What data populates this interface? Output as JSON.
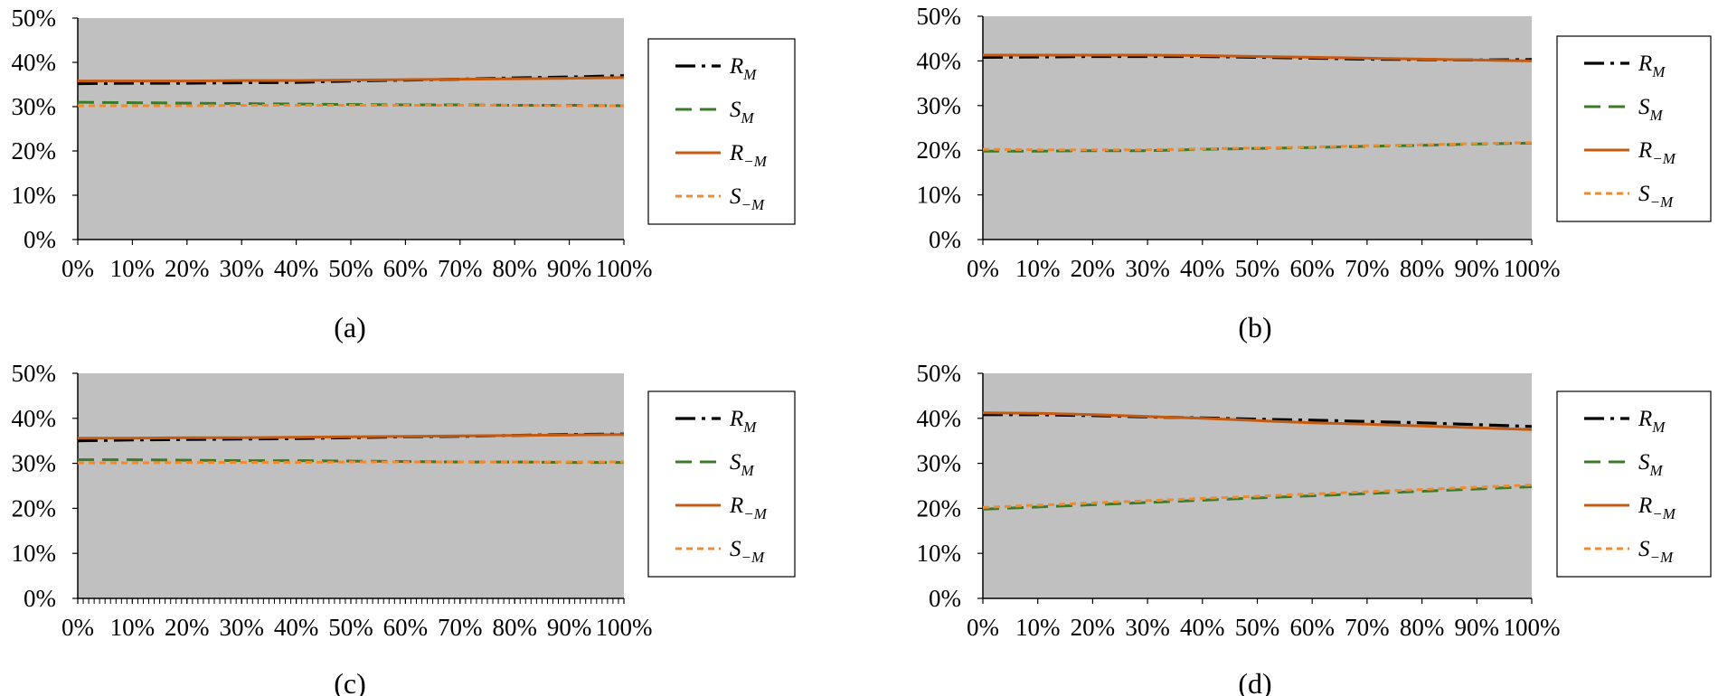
{
  "figure_title": "",
  "colors": {
    "plot_background": "#c0c0c0",
    "R_M": "#000000",
    "S_M": "#3a7a2a",
    "R_negM": "#c55a11",
    "S_negM": "#f08a30"
  },
  "chart_data": [
    {
      "type": "line",
      "caption": "(a)",
      "title": "",
      "xlabel": "",
      "ylabel": "",
      "x": [
        0,
        10,
        20,
        30,
        40,
        50,
        60,
        70,
        80,
        90,
        100
      ],
      "x_tick_labels": [
        "0%",
        "10%",
        "20%",
        "30%",
        "40%",
        "50%",
        "60%",
        "70%",
        "80%",
        "90%",
        "100%"
      ],
      "y_tick_labels": [
        "0%",
        "10%",
        "20%",
        "30%",
        "40%",
        "50%"
      ],
      "ylim": [
        0,
        50
      ],
      "minor_x_ticks": false,
      "legend_position": "right",
      "series": [
        {
          "name": "R_M",
          "label_main": "R",
          "label_sub": "M",
          "values": [
            35.2,
            35.3,
            35.3,
            35.4,
            35.5,
            35.8,
            36.0,
            36.2,
            36.5,
            36.7,
            37.0
          ]
        },
        {
          "name": "S_M",
          "label_main": "S",
          "label_sub": "M",
          "values": [
            31.0,
            30.9,
            30.8,
            30.7,
            30.6,
            30.5,
            30.4,
            30.4,
            30.3,
            30.3,
            30.2
          ]
        },
        {
          "name": "R_-M",
          "label_main": "R",
          "label_sub": "−M",
          "values": [
            35.8,
            35.8,
            35.8,
            35.9,
            35.9,
            36.0,
            36.1,
            36.2,
            36.3,
            36.4,
            36.6
          ]
        },
        {
          "name": "S_-M",
          "label_main": "S",
          "label_sub": "−M",
          "values": [
            30.2,
            30.2,
            30.2,
            30.3,
            30.3,
            30.3,
            30.3,
            30.3,
            30.3,
            30.2,
            30.2
          ]
        }
      ]
    },
    {
      "type": "line",
      "caption": "(b)",
      "title": "",
      "xlabel": "",
      "ylabel": "",
      "x": [
        0,
        10,
        20,
        30,
        40,
        50,
        60,
        70,
        80,
        90,
        100
      ],
      "x_tick_labels": [
        "0%",
        "10%",
        "20%",
        "30%",
        "40%",
        "50%",
        "60%",
        "70%",
        "80%",
        "90%",
        "100%"
      ],
      "y_tick_labels": [
        "0%",
        "10%",
        "20%",
        "30%",
        "40%",
        "50%"
      ],
      "ylim": [
        0,
        50
      ],
      "minor_x_ticks": false,
      "legend_position": "right",
      "series": [
        {
          "name": "R_M",
          "label_main": "R",
          "label_sub": "M",
          "values": [
            40.8,
            40.9,
            41.0,
            41.0,
            41.0,
            40.8,
            40.6,
            40.4,
            40.3,
            40.2,
            40.3
          ]
        },
        {
          "name": "S_M",
          "label_main": "S",
          "label_sub": "M",
          "values": [
            19.8,
            19.8,
            19.9,
            19.9,
            20.2,
            20.4,
            20.6,
            20.9,
            21.1,
            21.4,
            21.6
          ]
        },
        {
          "name": "R_-M",
          "label_main": "R",
          "label_sub": "−M",
          "values": [
            41.3,
            41.3,
            41.3,
            41.3,
            41.2,
            41.0,
            40.8,
            40.6,
            40.4,
            40.2,
            40.0
          ]
        },
        {
          "name": "S_-M",
          "label_main": "S",
          "label_sub": "−M",
          "values": [
            20.2,
            20.1,
            20.1,
            20.1,
            20.3,
            20.5,
            20.7,
            21.0,
            21.2,
            21.5,
            21.7
          ]
        }
      ]
    },
    {
      "type": "line",
      "caption": "(c)",
      "title": "",
      "xlabel": "",
      "ylabel": "",
      "x": [
        0,
        10,
        20,
        30,
        40,
        50,
        60,
        70,
        80,
        90,
        100
      ],
      "x_tick_labels": [
        "0%",
        "10%",
        "20%",
        "30%",
        "40%",
        "50%",
        "60%",
        "70%",
        "80%",
        "90%",
        "100%"
      ],
      "y_tick_labels": [
        "0%",
        "10%",
        "20%",
        "30%",
        "40%",
        "50%"
      ],
      "ylim": [
        0,
        50
      ],
      "minor_x_ticks": true,
      "legend_position": "right",
      "series": [
        {
          "name": "R_M",
          "label_main": "R",
          "label_sub": "M",
          "values": [
            35.0,
            35.2,
            35.3,
            35.4,
            35.5,
            35.7,
            35.9,
            36.0,
            36.2,
            36.4,
            36.5
          ]
        },
        {
          "name": "S_M",
          "label_main": "S",
          "label_sub": "M",
          "values": [
            30.8,
            30.8,
            30.7,
            30.6,
            30.6,
            30.5,
            30.4,
            30.3,
            30.3,
            30.2,
            30.2
          ]
        },
        {
          "name": "R_-M",
          "label_main": "R",
          "label_sub": "−M",
          "values": [
            35.6,
            35.6,
            35.7,
            35.7,
            35.8,
            35.9,
            36.0,
            36.1,
            36.2,
            36.3,
            36.4
          ]
        },
        {
          "name": "S_-M",
          "label_main": "S",
          "label_sub": "−M",
          "values": [
            30.1,
            30.1,
            30.2,
            30.2,
            30.2,
            30.3,
            30.3,
            30.3,
            30.3,
            30.3,
            30.3
          ]
        }
      ]
    },
    {
      "type": "line",
      "caption": "(d)",
      "title": "",
      "xlabel": "",
      "ylabel": "",
      "x": [
        0,
        10,
        20,
        30,
        40,
        50,
        60,
        70,
        80,
        90,
        100
      ],
      "x_tick_labels": [
        "0%",
        "10%",
        "20%",
        "30%",
        "40%",
        "50%",
        "60%",
        "70%",
        "80%",
        "90%",
        "100%"
      ],
      "y_tick_labels": [
        "0%",
        "10%",
        "20%",
        "30%",
        "40%",
        "50%"
      ],
      "ylim": [
        0,
        50
      ],
      "minor_x_ticks": false,
      "legend_position": "right",
      "series": [
        {
          "name": "R_M",
          "label_main": "R",
          "label_sub": "M",
          "values": [
            40.8,
            40.8,
            40.6,
            40.3,
            40.1,
            39.8,
            39.6,
            39.3,
            39.0,
            38.6,
            38.2
          ]
        },
        {
          "name": "S_M",
          "label_main": "S",
          "label_sub": "M",
          "values": [
            19.8,
            20.3,
            20.8,
            21.3,
            21.8,
            22.3,
            22.8,
            23.3,
            23.8,
            24.3,
            24.8
          ]
        },
        {
          "name": "R_-M",
          "label_main": "R",
          "label_sub": "−M",
          "values": [
            41.2,
            41.1,
            40.8,
            40.4,
            40.0,
            39.5,
            39.0,
            38.7,
            38.3,
            37.9,
            37.5
          ]
        },
        {
          "name": "S_-M",
          "label_main": "S",
          "label_sub": "−M",
          "values": [
            20.2,
            20.7,
            21.2,
            21.7,
            22.2,
            22.7,
            23.2,
            23.7,
            24.2,
            24.7,
            25.2
          ]
        }
      ]
    }
  ]
}
